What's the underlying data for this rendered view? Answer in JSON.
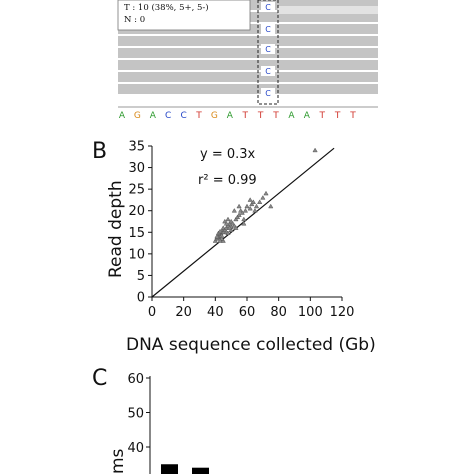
{
  "panel_a": {
    "tooltip_lines": [
      "T : 10 (38%, 5+, 5-)",
      "N : 0"
    ],
    "read_bases": [
      "C",
      "C",
      "C",
      "C",
      "C"
    ],
    "reference_sequence": [
      "A",
      "G",
      "A",
      "C",
      "C",
      "T",
      "G",
      "A",
      "T",
      "T",
      "T",
      "A",
      "A",
      "T",
      "T",
      "T"
    ],
    "base_colors": {
      "A": "#2e9a2e",
      "G": "#d98a1a",
      "C": "#2546c8",
      "T": "#d0352d"
    }
  },
  "panel_b": {
    "label": "B"
  },
  "panel_c": {
    "label": "C",
    "ylabel_fragment": "ms"
  },
  "chart_data": [
    {
      "type": "scatter",
      "xlabel": "DNA sequence collected (Gb)",
      "ylabel": "Read depth",
      "xlim": [
        0,
        120
      ],
      "ylim": [
        0,
        35
      ],
      "xticks": [
        "0",
        "20",
        "40",
        "60",
        "80",
        "100",
        "120"
      ],
      "yticks": [
        "0",
        "5",
        "10",
        "15",
        "20",
        "25",
        "30",
        "35"
      ],
      "annotations": [
        "y = 0.3x",
        "r² = 0.99"
      ],
      "fit_line": {
        "slope": 0.3,
        "intercept": 0,
        "x_range": [
          0,
          115
        ]
      },
      "points": [
        [
          40,
          13
        ],
        [
          41,
          13.5
        ],
        [
          41.5,
          13.8
        ],
        [
          42,
          14
        ],
        [
          42.5,
          14.2
        ],
        [
          43,
          14.5
        ],
        [
          43.5,
          14.7
        ],
        [
          44,
          15
        ],
        [
          44.5,
          15.2
        ],
        [
          45,
          15
        ],
        [
          41,
          14
        ],
        [
          42,
          14.8
        ],
        [
          43,
          15.2
        ],
        [
          44,
          14.2
        ],
        [
          45,
          16
        ],
        [
          46,
          15.5
        ],
        [
          47,
          16
        ],
        [
          48,
          16.5
        ],
        [
          49,
          17
        ],
        [
          50,
          17.5
        ],
        [
          47,
          15
        ],
        [
          48,
          14.8
        ],
        [
          50,
          16.2
        ],
        [
          51,
          17
        ],
        [
          52,
          16.5
        ],
        [
          53,
          18
        ],
        [
          54,
          18.5
        ],
        [
          55,
          19
        ],
        [
          56,
          20
        ],
        [
          57,
          19.5
        ],
        [
          58,
          18
        ],
        [
          59,
          20
        ],
        [
          60,
          21
        ],
        [
          62,
          20.5
        ],
        [
          63,
          21.5
        ],
        [
          64,
          22
        ],
        [
          65,
          20
        ],
        [
          66,
          21
        ],
        [
          68,
          22
        ],
        [
          70,
          23
        ],
        [
          72,
          24
        ],
        [
          75,
          21
        ],
        [
          52,
          20
        ],
        [
          55,
          21
        ],
        [
          48,
          18
        ],
        [
          46,
          17.5
        ],
        [
          45,
          13
        ],
        [
          50,
          15.5
        ],
        [
          53,
          16
        ],
        [
          58,
          17
        ],
        [
          62,
          22.5
        ],
        [
          44,
          13.5
        ],
        [
          43,
          13
        ],
        [
          47,
          17
        ],
        [
          49,
          16
        ],
        [
          103,
          34
        ]
      ]
    },
    {
      "type": "bar",
      "ylim": [
        0,
        60
      ],
      "yticks": [
        "40",
        "50",
        "60"
      ],
      "values": [
        35,
        34
      ]
    }
  ]
}
